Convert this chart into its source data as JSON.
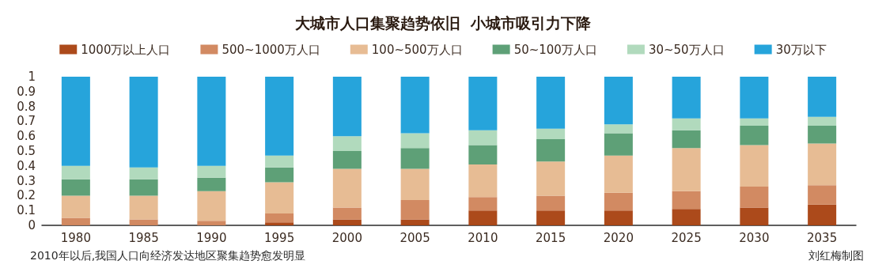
{
  "chart_data": {
    "type": "bar",
    "stacked": true,
    "title": "大城市人口集聚趋势依旧  小城市吸引力下降",
    "categories": [
      "1980",
      "1985",
      "1990",
      "1995",
      "2000",
      "2005",
      "2010",
      "2015",
      "2020",
      "2025",
      "2030",
      "2035"
    ],
    "series": [
      {
        "name": "1000万以上人口",
        "color": "#a8400f",
        "values": [
          0,
          0,
          0,
          0.02,
          0.04,
          0.04,
          0.1,
          0.1,
          0.1,
          0.11,
          0.12,
          0.14
        ]
      },
      {
        "name": "500~1000万人口",
        "color": "#d0845a",
        "values": [
          0.05,
          0.04,
          0.03,
          0.06,
          0.08,
          0.13,
          0.09,
          0.1,
          0.12,
          0.12,
          0.14,
          0.13
        ]
      },
      {
        "name": "100~500万人口",
        "color": "#e6b88e",
        "values": [
          0.15,
          0.16,
          0.2,
          0.21,
          0.26,
          0.21,
          0.22,
          0.23,
          0.25,
          0.29,
          0.28,
          0.28
        ]
      },
      {
        "name": "50~100万人口",
        "color": "#559b70",
        "values": [
          0.11,
          0.11,
          0.09,
          0.1,
          0.12,
          0.14,
          0.13,
          0.15,
          0.15,
          0.12,
          0.13,
          0.12
        ]
      },
      {
        "name": "30~50万人口",
        "color": "#add8b9",
        "values": [
          0.09,
          0.08,
          0.08,
          0.08,
          0.1,
          0.1,
          0.1,
          0.07,
          0.06,
          0.08,
          0.05,
          0.06
        ]
      },
      {
        "name": "30万以下",
        "color": "#1a9fd9",
        "values": [
          0.6,
          0.61,
          0.6,
          0.53,
          0.4,
          0.38,
          0.36,
          0.35,
          0.32,
          0.28,
          0.28,
          0.27
        ]
      }
    ],
    "ylim": [
      0,
      1
    ],
    "yticks": [
      0,
      0.1,
      0.2,
      0.3,
      0.4,
      0.5,
      0.6,
      0.7,
      0.8,
      0.9,
      1
    ],
    "grid": false,
    "legend": "top",
    "annotations": [
      "2010年以后,我国人口向经济发达地区聚集趋势愈发明显",
      "刘红梅制图"
    ]
  }
}
